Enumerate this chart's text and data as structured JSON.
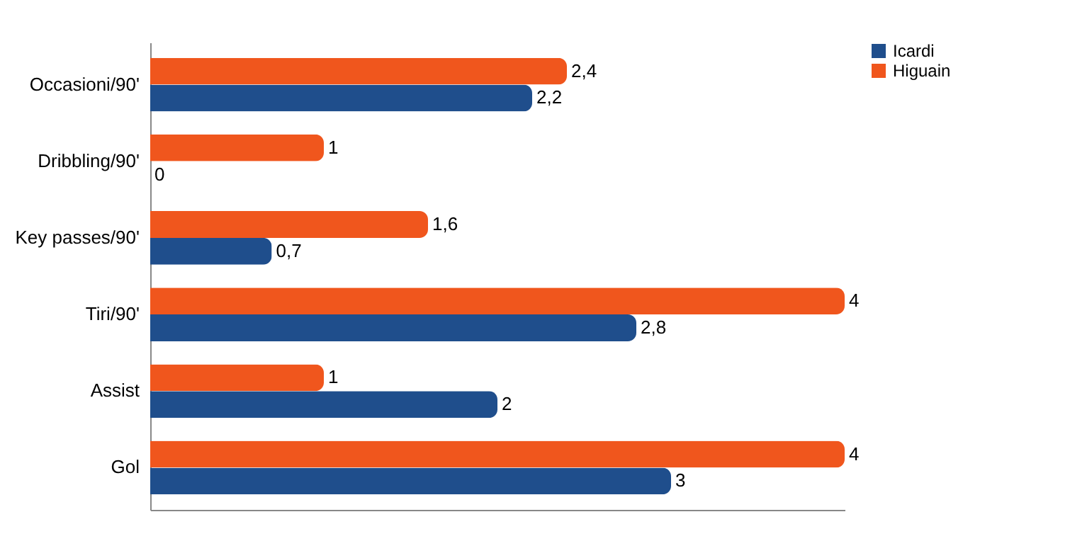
{
  "chart_data": {
    "type": "bar",
    "orientation": "horizontal",
    "categories": [
      "Occasioni/90'",
      "Dribbling/90'",
      "Key passes/90'",
      "Tiri/90'",
      "Assist",
      "Gol"
    ],
    "series": [
      {
        "name": "Icardi",
        "color": "#1f4e8c",
        "values": [
          2.2,
          0,
          0.7,
          2.8,
          2,
          3
        ],
        "value_labels": [
          "2,2",
          "0",
          "0,7",
          "2,8",
          "2",
          "3"
        ]
      },
      {
        "name": "Higuain",
        "color": "#f0561d",
        "values": [
          2.4,
          1,
          1.6,
          4,
          1,
          4
        ],
        "value_labels": [
          "2,4",
          "1",
          "1,6",
          "4",
          "1",
          "4"
        ]
      }
    ],
    "xlim": [
      0,
      4
    ],
    "tick_labels": "y",
    "legend": "right"
  }
}
